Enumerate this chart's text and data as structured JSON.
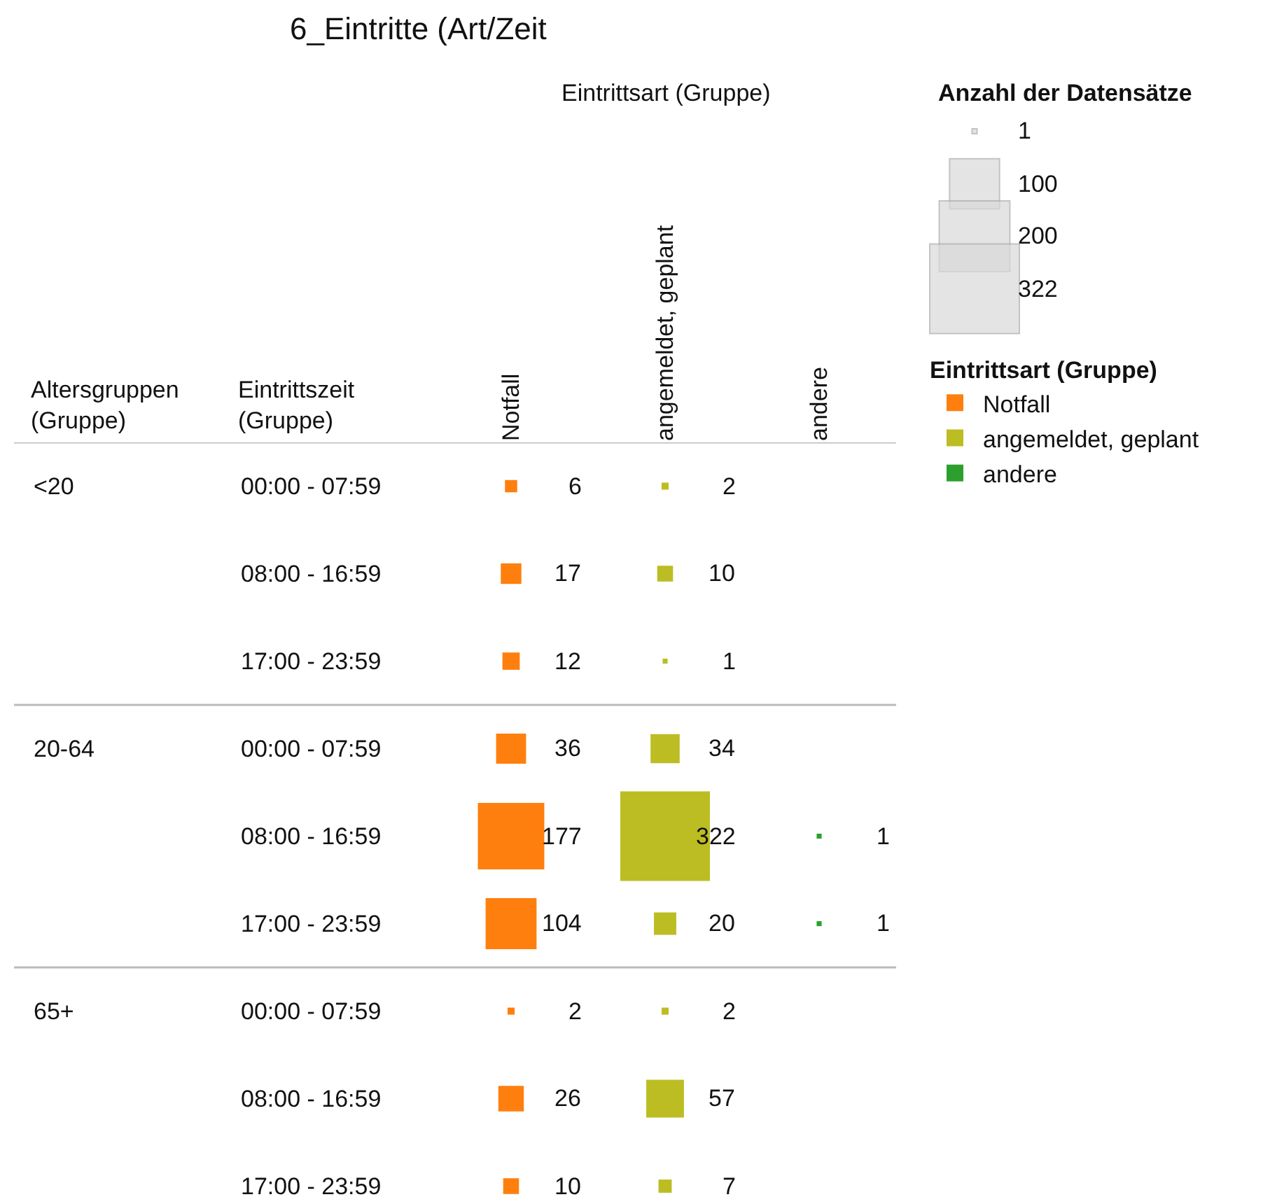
{
  "chart_data": {
    "type": "heatmap",
    "title": "6_Eintritte (Art/Zeit",
    "xlabel": "Eintrittsart (Gruppe)",
    "ylabel": "Eintrittszeit (Gruppe)",
    "y2label": "Altersgruppen (Gruppe)",
    "categories": [
      "Notfall",
      "angemeldet, geplant",
      "andere"
    ],
    "colors": [
      "#ff7f0e",
      "#bcbd22",
      "#2ca02c"
    ],
    "y_categories": [
      "00:00 - 07:59",
      "08:00 - 16:59",
      "17:00 - 23:59",
      "00:00 - 07:59",
      "08:00 - 16:59",
      "17:00 - 23:59",
      "00:00 - 07:59",
      "08:00 - 16:59",
      "17:00 - 23:59"
    ],
    "y2_categories": [
      "<20",
      null,
      null,
      "20-64",
      null,
      null,
      "65+",
      null,
      null
    ],
    "cells": [
      [
        6,
        2,
        null
      ],
      [
        17,
        10,
        null
      ],
      [
        12,
        1,
        null
      ],
      [
        36,
        34,
        null
      ],
      [
        177,
        322,
        1
      ],
      [
        104,
        20,
        1
      ],
      [
        2,
        2,
        null
      ],
      [
        26,
        57,
        null
      ],
      [
        10,
        7,
        null
      ]
    ],
    "legend_title": "Eintrittsart (Gruppe)",
    "annotations": [
      "Anzahl der Datensätze",
      "1",
      "100",
      "200",
      "322"
    ],
    "data_labels": true
  }
}
